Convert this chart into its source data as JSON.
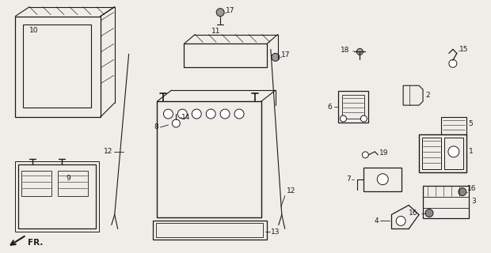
{
  "background_color": "#f0ede8",
  "line_color": "#1a1a1a",
  "fr_label": "FR.",
  "fig_width": 6.2,
  "fig_height": 3.2,
  "dpi": 100
}
